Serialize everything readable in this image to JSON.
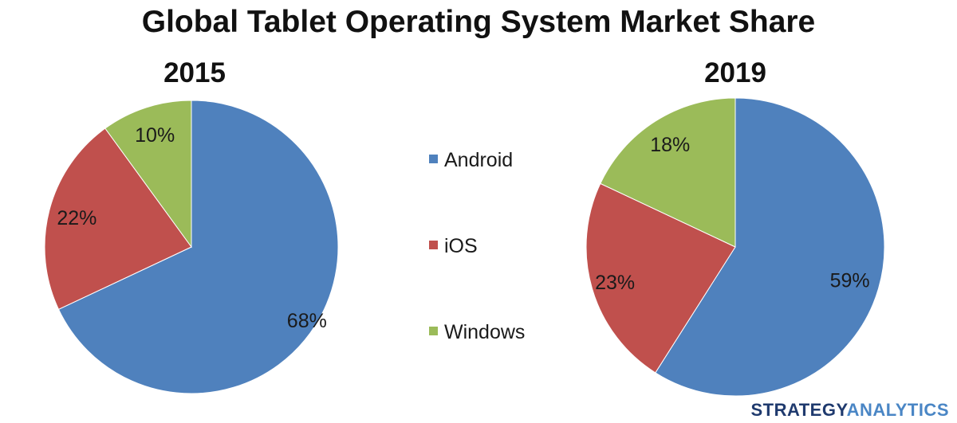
{
  "chart_data": {
    "type": "pie",
    "title": "Global Tablet Operating System Market Share",
    "legend_position": "center",
    "categories": [
      "Android",
      "iOS",
      "Windows"
    ],
    "colors": {
      "Android": "#4f81bd",
      "iOS": "#c0504d",
      "Windows": "#9bbb59"
    },
    "pies": [
      {
        "label": "2015",
        "values": [
          68,
          22,
          10
        ],
        "labels": [
          "68%",
          "22%",
          "10%"
        ]
      },
      {
        "label": "2019",
        "values": [
          59,
          23,
          18
        ],
        "labels": [
          "59%",
          "23%",
          "18%"
        ]
      }
    ]
  },
  "brand": {
    "part1": "STRATEGY",
    "part2": "ANALYTICS",
    "color1": "#1f3a6e",
    "color2": "#4a86c5"
  }
}
